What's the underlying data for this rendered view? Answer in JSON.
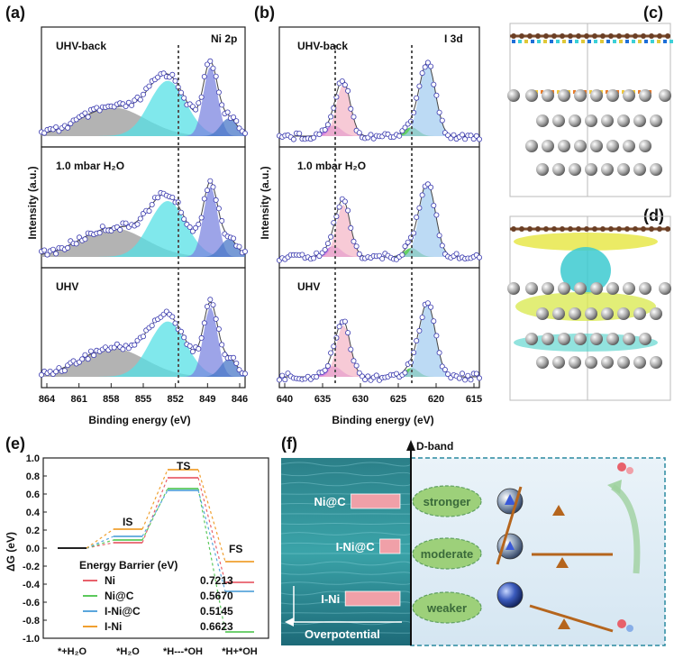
{
  "panels": {
    "a": {
      "letter": "(a)",
      "element": "Ni 2p",
      "rows": [
        "UHV-back",
        "1.0 mbar H₂O",
        "UHV"
      ],
      "ylabel": "Intensity (a.u.)",
      "xlabel": "Binding energy (eV)",
      "xticks": [
        "864",
        "861",
        "858",
        "855",
        "852",
        "849",
        "846"
      ]
    },
    "b": {
      "letter": "(b)",
      "element": "I 3d",
      "rows": [
        "UHV-back",
        "1.0 mbar H₂O",
        "UHV"
      ],
      "ylabel": "Intensity (a.u.)",
      "xlabel": "Binding energy (eV)",
      "xticks": [
        "640",
        "635",
        "630",
        "625",
        "620",
        "615"
      ]
    },
    "c": {
      "letter": "(c)"
    },
    "d": {
      "letter": "(d)"
    },
    "e": {
      "letter": "(e)",
      "ylabel": "ΔG (eV)",
      "legend_title": "Energy Barrier (eV)",
      "states": [
        "IS",
        "TS",
        "FS"
      ],
      "xcats": [
        "*+H₂O",
        "*H₂O",
        "*H---*OH",
        "*H+*OH"
      ],
      "yticks": [
        "1.0",
        "0.8",
        "0.6",
        "0.4",
        "0.2",
        "0.0",
        "-0.2",
        "-0.4",
        "-0.6",
        "-0.8",
        "-1.0"
      ]
    },
    "f": {
      "letter": "(f)",
      "dband": "D-band",
      "overpotential": "Overpotential",
      "bars": [
        {
          "label": "Ni@C",
          "value": 0.85
        },
        {
          "label": "I-Ni@C",
          "value": 0.35
        },
        {
          "label": "I-Ni",
          "value": 0.95
        }
      ],
      "strengths": [
        "stronger",
        "moderate",
        "weaker"
      ]
    }
  },
  "chart_data": [
    {
      "type": "line",
      "title": "",
      "xlabel": "",
      "ylabel": "ΔG (eV)",
      "ylim": [
        -1.0,
        1.0
      ],
      "categories": [
        "*+H₂O",
        "*H₂O",
        "*H---*OH",
        "*H+*OH"
      ],
      "series": [
        {
          "name": "Ni",
          "barrier": "0.7213",
          "color": "#e8616b",
          "values": [
            0.0,
            0.06,
            0.78,
            -0.38
          ]
        },
        {
          "name": "Ni@C",
          "barrier": "0.5670",
          "color": "#5cc95c",
          "values": [
            0.0,
            0.09,
            0.66,
            -0.93
          ]
        },
        {
          "name": "I-Ni@C",
          "barrier": "0.5145",
          "color": "#5aa6dc",
          "values": [
            0.0,
            0.13,
            0.64,
            -0.48
          ]
        },
        {
          "name": "I-Ni",
          "barrier": "0.6623",
          "color": "#f0a030",
          "values": [
            0.0,
            0.21,
            0.87,
            -0.15
          ]
        }
      ]
    }
  ]
}
